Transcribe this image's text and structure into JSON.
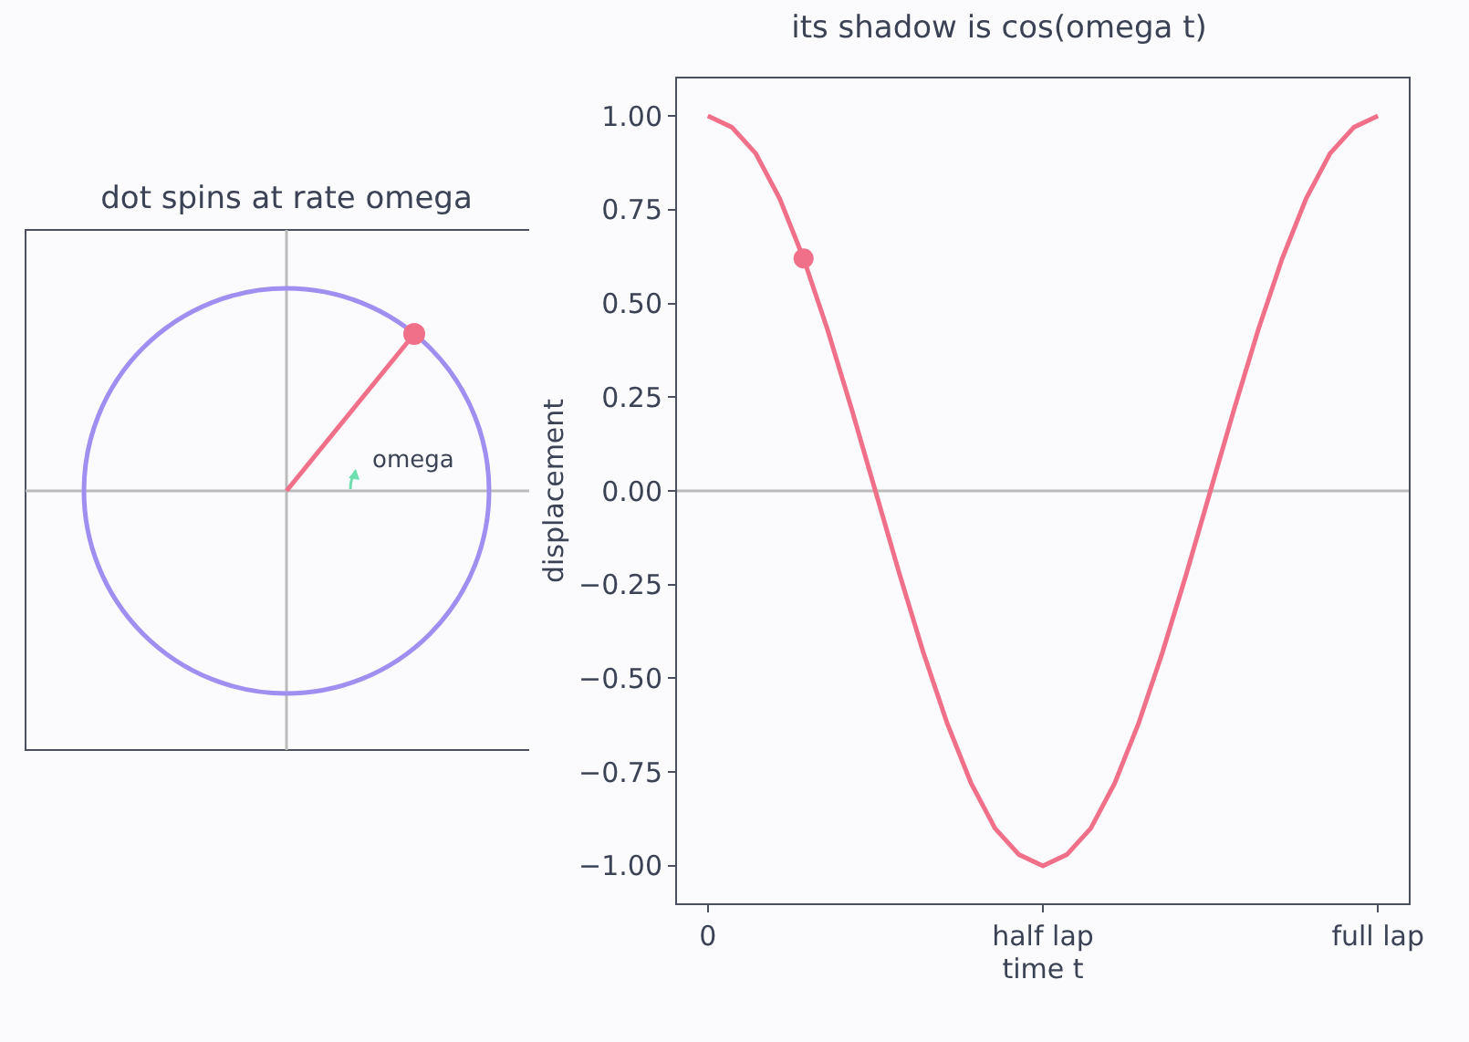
{
  "chart_data": [
    {
      "type": "other",
      "title": "dot spins at rate omega",
      "annotations": [
        "omega"
      ]
    },
    {
      "type": "line",
      "title": "its shadow is cos(omega t)",
      "xlabel": "time t",
      "ylabel": "displacement",
      "grid": false,
      "categories": [
        "0",
        null,
        null,
        null,
        null,
        null,
        null,
        null,
        null,
        null,
        null,
        null,
        null,
        null,
        "half lap",
        null,
        null,
        null,
        null,
        null,
        null,
        null,
        null,
        null,
        null,
        null,
        null,
        null,
        "full lap"
      ],
      "ylim": [
        -1.1,
        1.1
      ],
      "yticks": [
        {
          "value": -1,
          "label": "−1.00"
        },
        {
          "value": -0.75,
          "label": "−0.75"
        },
        {
          "value": -0.5,
          "label": "−0.50"
        },
        {
          "value": -0.25,
          "label": "−0.25"
        },
        {
          "value": 0,
          "label": "0.00"
        },
        {
          "value": 0.25,
          "label": "0.25"
        },
        {
          "value": 0.5,
          "label": "0.50"
        },
        {
          "value": 0.75,
          "label": "0.75"
        },
        {
          "value": 1,
          "label": "1.00"
        }
      ],
      "ref_lines": [
        {
          "axis": "y",
          "value": 0,
          "color": "#bbbbbb"
        }
      ],
      "series": [
        {
          "color": "#f0708a",
          "line_style": "solid",
          "marker": "none",
          "values": [
            1,
            0.97,
            0.9,
            0.78,
            0.62,
            0.43,
            0.22,
            0,
            -0.22,
            -0.43,
            -0.62,
            -0.78,
            -0.9,
            -0.97,
            -1,
            -0.97,
            -0.9,
            -0.78,
            -0.62,
            -0.43,
            -0.22,
            0,
            0.22,
            0.43,
            0.62,
            0.78,
            0.9,
            0.97,
            1
          ]
        },
        {
          "type": "scatter",
          "color": "#f0708a",
          "marker": "circle",
          "values": [
            null,
            null,
            null,
            null,
            0.62,
            null,
            null,
            null,
            null,
            null,
            null,
            null,
            null,
            null,
            null,
            null,
            null,
            null,
            null,
            null,
            null,
            null,
            null,
            null,
            null,
            null,
            null,
            null,
            null
          ]
        }
      ]
    }
  ]
}
